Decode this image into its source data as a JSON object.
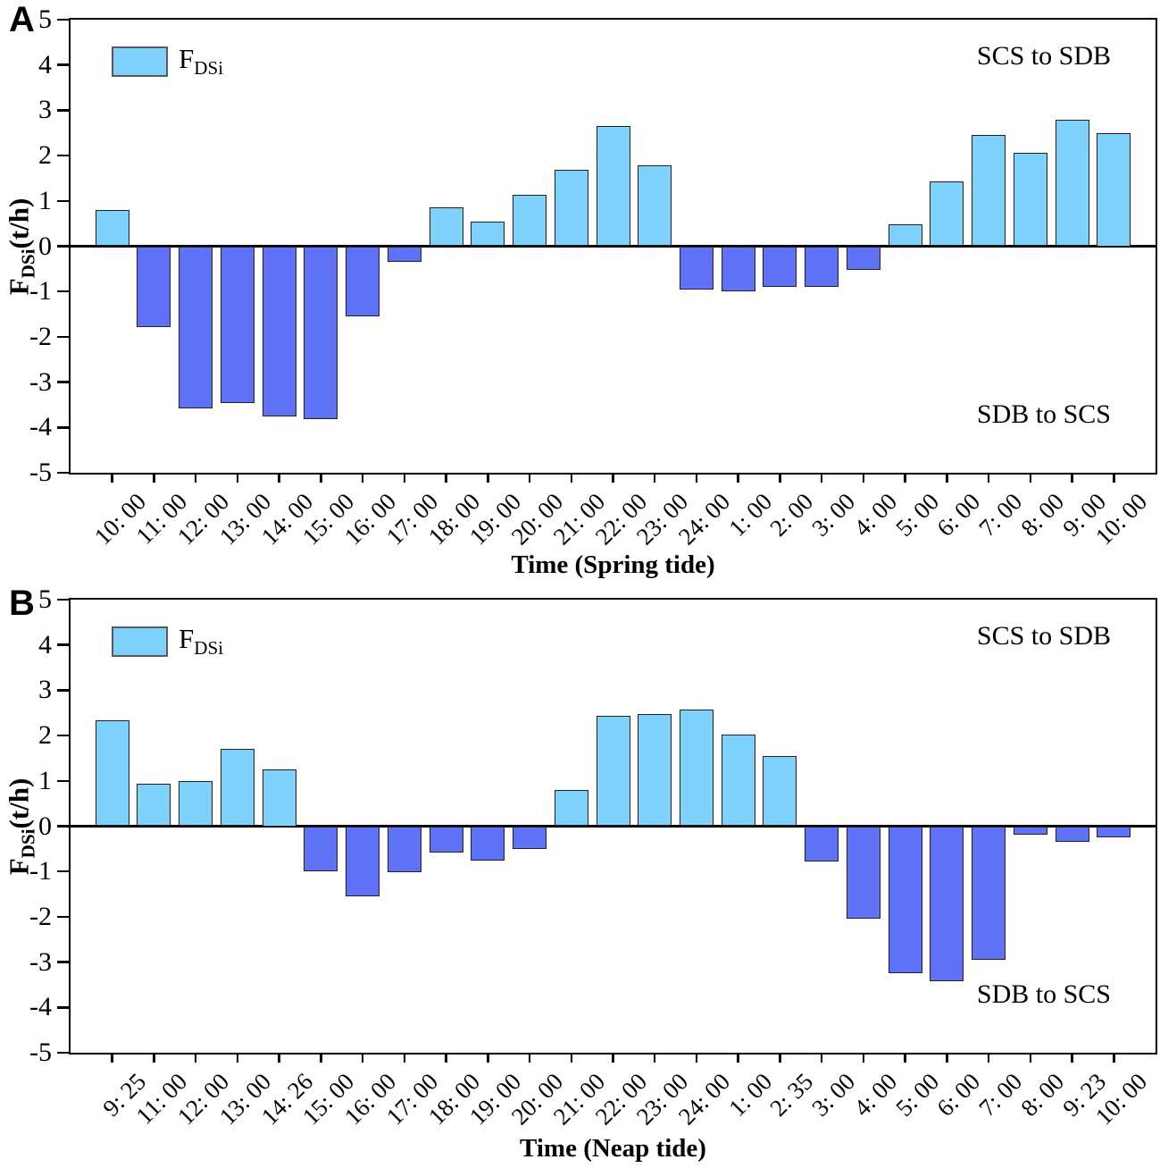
{
  "figure": {
    "panel_a_letter": "A",
    "panel_b_letter": "B"
  },
  "chart_data": [
    {
      "type": "bar",
      "panel": "A",
      "legend_label": "F",
      "legend_sub": "DSi",
      "ylabel_f": "F",
      "ylabel_sub": "DSi",
      "ylabel_rest": "(t/h)",
      "xlabel": "Time (Spring tide)",
      "annotation_positive": "SCS to SDB",
      "annotation_negative": "SDB to SCS",
      "ylim": [
        -5,
        5
      ],
      "yticks": [
        5,
        4,
        3,
        2,
        1,
        0,
        -1,
        -2,
        -3,
        -4,
        -5
      ],
      "colors": {
        "positive": "#7ED1FA",
        "negative": "#5F71F6",
        "axis": "#000000"
      },
      "categories": [
        "10: 00",
        "11: 00",
        "12: 00",
        "13: 00",
        "14: 00",
        "15: 00",
        "16: 00",
        "17: 00",
        "18: 00",
        "19: 00",
        "20: 00",
        "21: 00",
        "22: 00",
        "23: 00",
        "24: 00",
        "1: 00",
        "2: 00",
        "3: 00",
        "4: 00",
        "5: 00",
        "6: 00",
        "7: 00",
        "8: 00",
        "9: 00",
        "10: 00"
      ],
      "values": [
        0.8,
        -1.78,
        -3.58,
        -3.47,
        -3.76,
        -3.81,
        -1.55,
        -0.35,
        0.85,
        0.55,
        1.14,
        1.68,
        2.66,
        1.78,
        -0.95,
        -1.0,
        -0.9,
        -0.9,
        -0.52,
        0.49,
        1.43,
        2.46,
        2.06,
        2.79,
        2.5
      ]
    },
    {
      "type": "bar",
      "panel": "B",
      "legend_label": "F",
      "legend_sub": "DSi",
      "ylabel_f": "F",
      "ylabel_sub": "DSi",
      "ylabel_rest": "(t/h)",
      "xlabel": "Time (Neap tide)",
      "annotation_positive": "SCS to SDB",
      "annotation_negative": "SDB to SCS",
      "ylim": [
        -5,
        5
      ],
      "yticks": [
        5,
        4,
        3,
        2,
        1,
        0,
        -1,
        -2,
        -3,
        -4,
        -5
      ],
      "colors": {
        "positive": "#7ED1FA",
        "negative": "#5F71F6",
        "axis": "#000000"
      },
      "categories": [
        "9: 25",
        "11: 00",
        "12: 00",
        "13: 00",
        "14: 26",
        "15: 00",
        "16: 00",
        "17: 00",
        "18: 00",
        "19: 00",
        "20: 00",
        "21: 00",
        "22: 00",
        "23: 00",
        "24: 00",
        "1: 00",
        "2: 35",
        "3: 00",
        "4: 00",
        "5: 00",
        "6: 00",
        "7: 00",
        "8: 00",
        "9: 23",
        "10: 00"
      ],
      "values": [
        2.33,
        0.94,
        1.0,
        1.71,
        1.25,
        -0.99,
        -1.55,
        -1.01,
        -0.58,
        -0.76,
        -0.5,
        0.8,
        2.44,
        2.48,
        2.58,
        2.03,
        1.54,
        -0.78,
        -2.05,
        -3.24,
        -3.42,
        -2.94,
        -0.19,
        -0.35,
        -0.25
      ]
    }
  ]
}
